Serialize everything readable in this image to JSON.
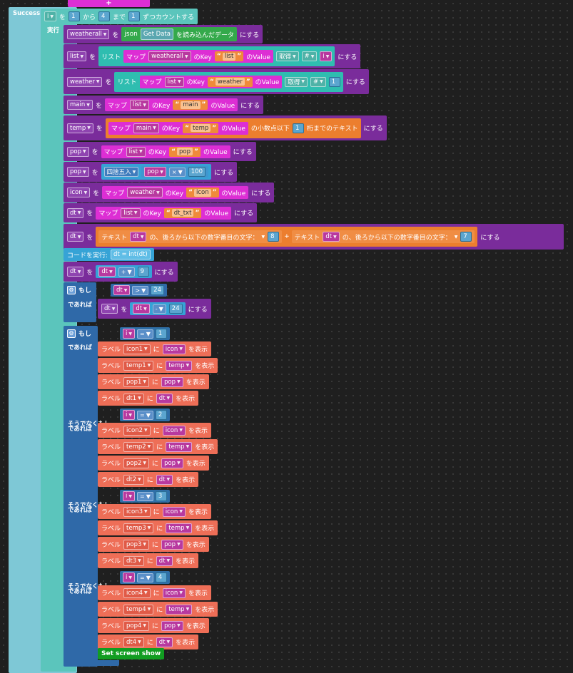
{
  "event": {
    "label": "Success",
    "add_icon": "+"
  },
  "loop": {
    "var": "i",
    "wo": "を",
    "from_val": "1",
    "kara": "から",
    "to_val": "4",
    "made": "まで",
    "step_val": "1",
    "step_text": "ずつカウントする",
    "do": "実行"
  },
  "common": {
    "wo": "を",
    "nisuru": "にする",
    "map": "マップ",
    "nokey": "のKey",
    "novalue": "のValue",
    "list": "リスト",
    "get": "取得",
    "hash": "#",
    "label": "ラベル",
    "ni": "に",
    "wohyouji": "を表示",
    "if": "もし",
    "then": "であれば",
    "elseif": "そうでなくもし"
  },
  "rows": {
    "r1": {
      "var": "weatherall",
      "json": "json",
      "getdata": "Get Data",
      "read": "を読み込んだデータ"
    },
    "r2": {
      "var": "list",
      "inner": "weatherall",
      "key": "list",
      "idx": "i"
    },
    "r3": {
      "var": "weather",
      "inner": "list",
      "key": "weather",
      "idx": "1"
    },
    "r4": {
      "var": "main",
      "inner": "list",
      "key": "main"
    },
    "r5": {
      "var": "temp",
      "inner": "main",
      "key": "temp",
      "decimal": "の小数点以下",
      "n": "1",
      "digits": "桁までのテキスト"
    },
    "r6": {
      "var": "pop",
      "inner": "list",
      "key": "pop"
    },
    "r7": {
      "var": "pop",
      "round": "四捨五入",
      "inner": "pop",
      "op": "×",
      "n": "100"
    },
    "r8": {
      "var": "icon",
      "inner": "weather",
      "key": "icon"
    },
    "r9": {
      "var": "dt",
      "inner": "list",
      "key": "dt_txt"
    },
    "r10": {
      "var": "dt",
      "text": "テキスト",
      "a": "dt",
      "desc": "の、後ろから以下の数字番目の文字：",
      "n1": "8",
      "plus": "+",
      "b": "dt",
      "n2": "7"
    },
    "r11": {
      "code": "コードを実行:",
      "expr": "dt = int(dt)"
    },
    "r12": {
      "var": "dt",
      "inner": "dt",
      "op": "+",
      "n": "9"
    },
    "if1": {
      "a": "dt",
      "op": ">",
      "n": "24",
      "set_var": "dt",
      "inner": "dt",
      "op2": "-",
      "n2": "24"
    },
    "if2": {
      "branches": [
        {
          "n": "1",
          "labels": [
            [
              "icon1",
              "icon"
            ],
            [
              "temp1",
              "temp"
            ],
            [
              "pop1",
              "pop"
            ],
            [
              "dt1",
              "dt"
            ]
          ]
        },
        {
          "n": "2",
          "labels": [
            [
              "icon2",
              "icon"
            ],
            [
              "temp2",
              "temp"
            ],
            [
              "pop2",
              "pop"
            ],
            [
              "dt2",
              "dt"
            ]
          ]
        },
        {
          "n": "3",
          "labels": [
            [
              "icon3",
              "icon"
            ],
            [
              "temp3",
              "temp"
            ],
            [
              "pop3",
              "pop"
            ],
            [
              "dt3",
              "dt"
            ]
          ]
        },
        {
          "n": "4",
          "labels": [
            [
              "icon4",
              "icon"
            ],
            [
              "temp4",
              "temp"
            ],
            [
              "pop4",
              "pop"
            ],
            [
              "dt4",
              "dt"
            ]
          ]
        }
      ],
      "var": "i",
      "op": "=",
      "screen": "Set screen show"
    }
  },
  "colors": {
    "event": "#7ec8d6",
    "loop": "#5bc5bc",
    "purple": "#7a2c9b",
    "magenta": "#dd2ed4",
    "teal": "#2fbdb0",
    "blue": "#2f69a8",
    "salmon": "#ee6e57",
    "orange": "#ec7e2e",
    "green": "#119d21"
  }
}
